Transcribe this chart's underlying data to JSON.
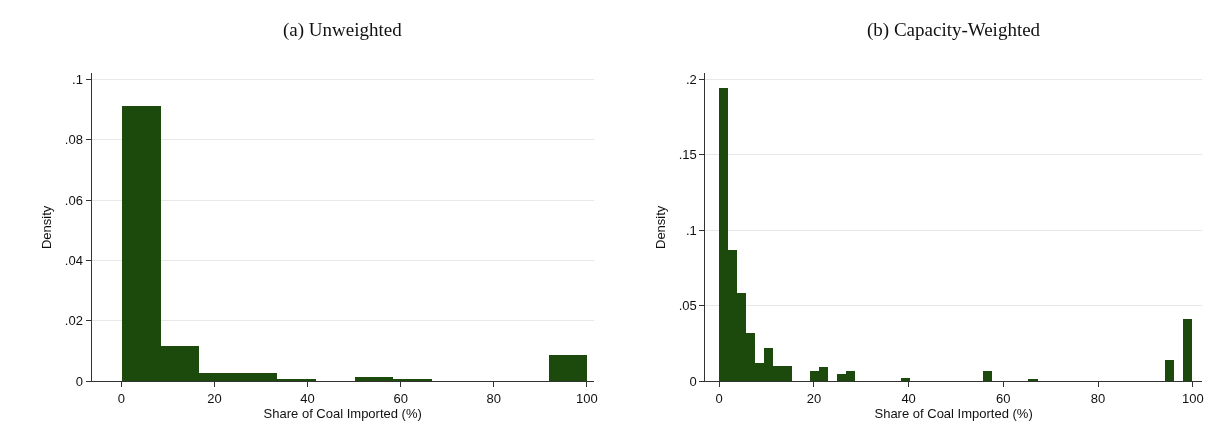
{
  "chart_data": [
    {
      "type": "histogram",
      "title": "(a) Unweighted",
      "xlabel": "Share of Coal Imported (%)",
      "ylabel": "Density",
      "color": "#1c4a0c",
      "bins": [
        0,
        8.333,
        16.667,
        25,
        33.333,
        41.667,
        50,
        58.333,
        66.667,
        75,
        83.333,
        91.667,
        100
      ],
      "values": [
        0.091,
        0.0115,
        0.0027,
        0.0027,
        0.0006,
        0,
        0.0013,
        0.0006,
        0,
        0,
        0,
        0.0086
      ],
      "xlim": [
        -6.4,
        101.5
      ],
      "ylim": [
        0,
        0.102
      ],
      "xticks": [
        0,
        20,
        40,
        60,
        80,
        100
      ],
      "yticks": [
        0,
        {
          "value": 0.02,
          "label": ".02"
        },
        {
          "value": 0.04,
          "label": ".04"
        },
        {
          "value": 0.06,
          "label": ".06"
        },
        {
          "value": 0.08,
          "label": ".08"
        },
        {
          "value": 0.1,
          "label": ".1"
        }
      ],
      "grid": "y"
    },
    {
      "type": "histogram",
      "title": "(b) Capacity-Weighted",
      "xlabel": "Share of Coal Imported (%)",
      "ylabel": "Density",
      "color": "#1c4a0c",
      "bins": [
        0,
        1.923,
        3.846,
        5.769,
        7.692,
        9.615,
        11.538,
        13.462,
        15.385,
        17.308,
        19.231,
        21.154,
        23.077,
        25,
        26.923,
        28.846,
        30.769,
        32.692,
        34.615,
        36.538,
        38.462,
        40.385,
        42.308,
        44.231,
        46.154,
        48.077,
        50,
        51.923,
        53.846,
        55.769,
        57.692,
        59.615,
        61.538,
        63.462,
        65.385,
        67.308,
        69.231,
        71.154,
        73.077,
        75,
        76.923,
        78.846,
        80.769,
        82.692,
        84.615,
        86.538,
        88.462,
        90.385,
        92.308,
        94.231,
        96.154,
        98.077,
        100
      ],
      "values": [
        0.194,
        0.087,
        0.058,
        0.032,
        0.012,
        0.022,
        0.01,
        0.0096,
        0,
        0,
        0.0067,
        0.0094,
        0,
        0.0047,
        0.0067,
        0,
        0,
        0,
        0,
        0,
        0.002,
        0,
        0,
        0,
        0,
        0,
        0,
        0,
        0,
        0.0067,
        0,
        0,
        0,
        0,
        0.001,
        0,
        0,
        0,
        0,
        0,
        0,
        0,
        0,
        0,
        0,
        0,
        0,
        0,
        0,
        0.0136,
        0,
        0.041
      ],
      "xlim": [
        -2.9,
        101.9
      ],
      "ylim": [
        0,
        0.204
      ],
      "xticks": [
        0,
        20,
        40,
        60,
        80,
        100
      ],
      "yticks": [
        0,
        {
          "value": 0.05,
          "label": ".05"
        },
        {
          "value": 0.1,
          "label": ".1"
        },
        {
          "value": 0.15,
          "label": ".15"
        },
        {
          "value": 0.2,
          "label": ".2"
        }
      ],
      "grid": "y"
    }
  ]
}
